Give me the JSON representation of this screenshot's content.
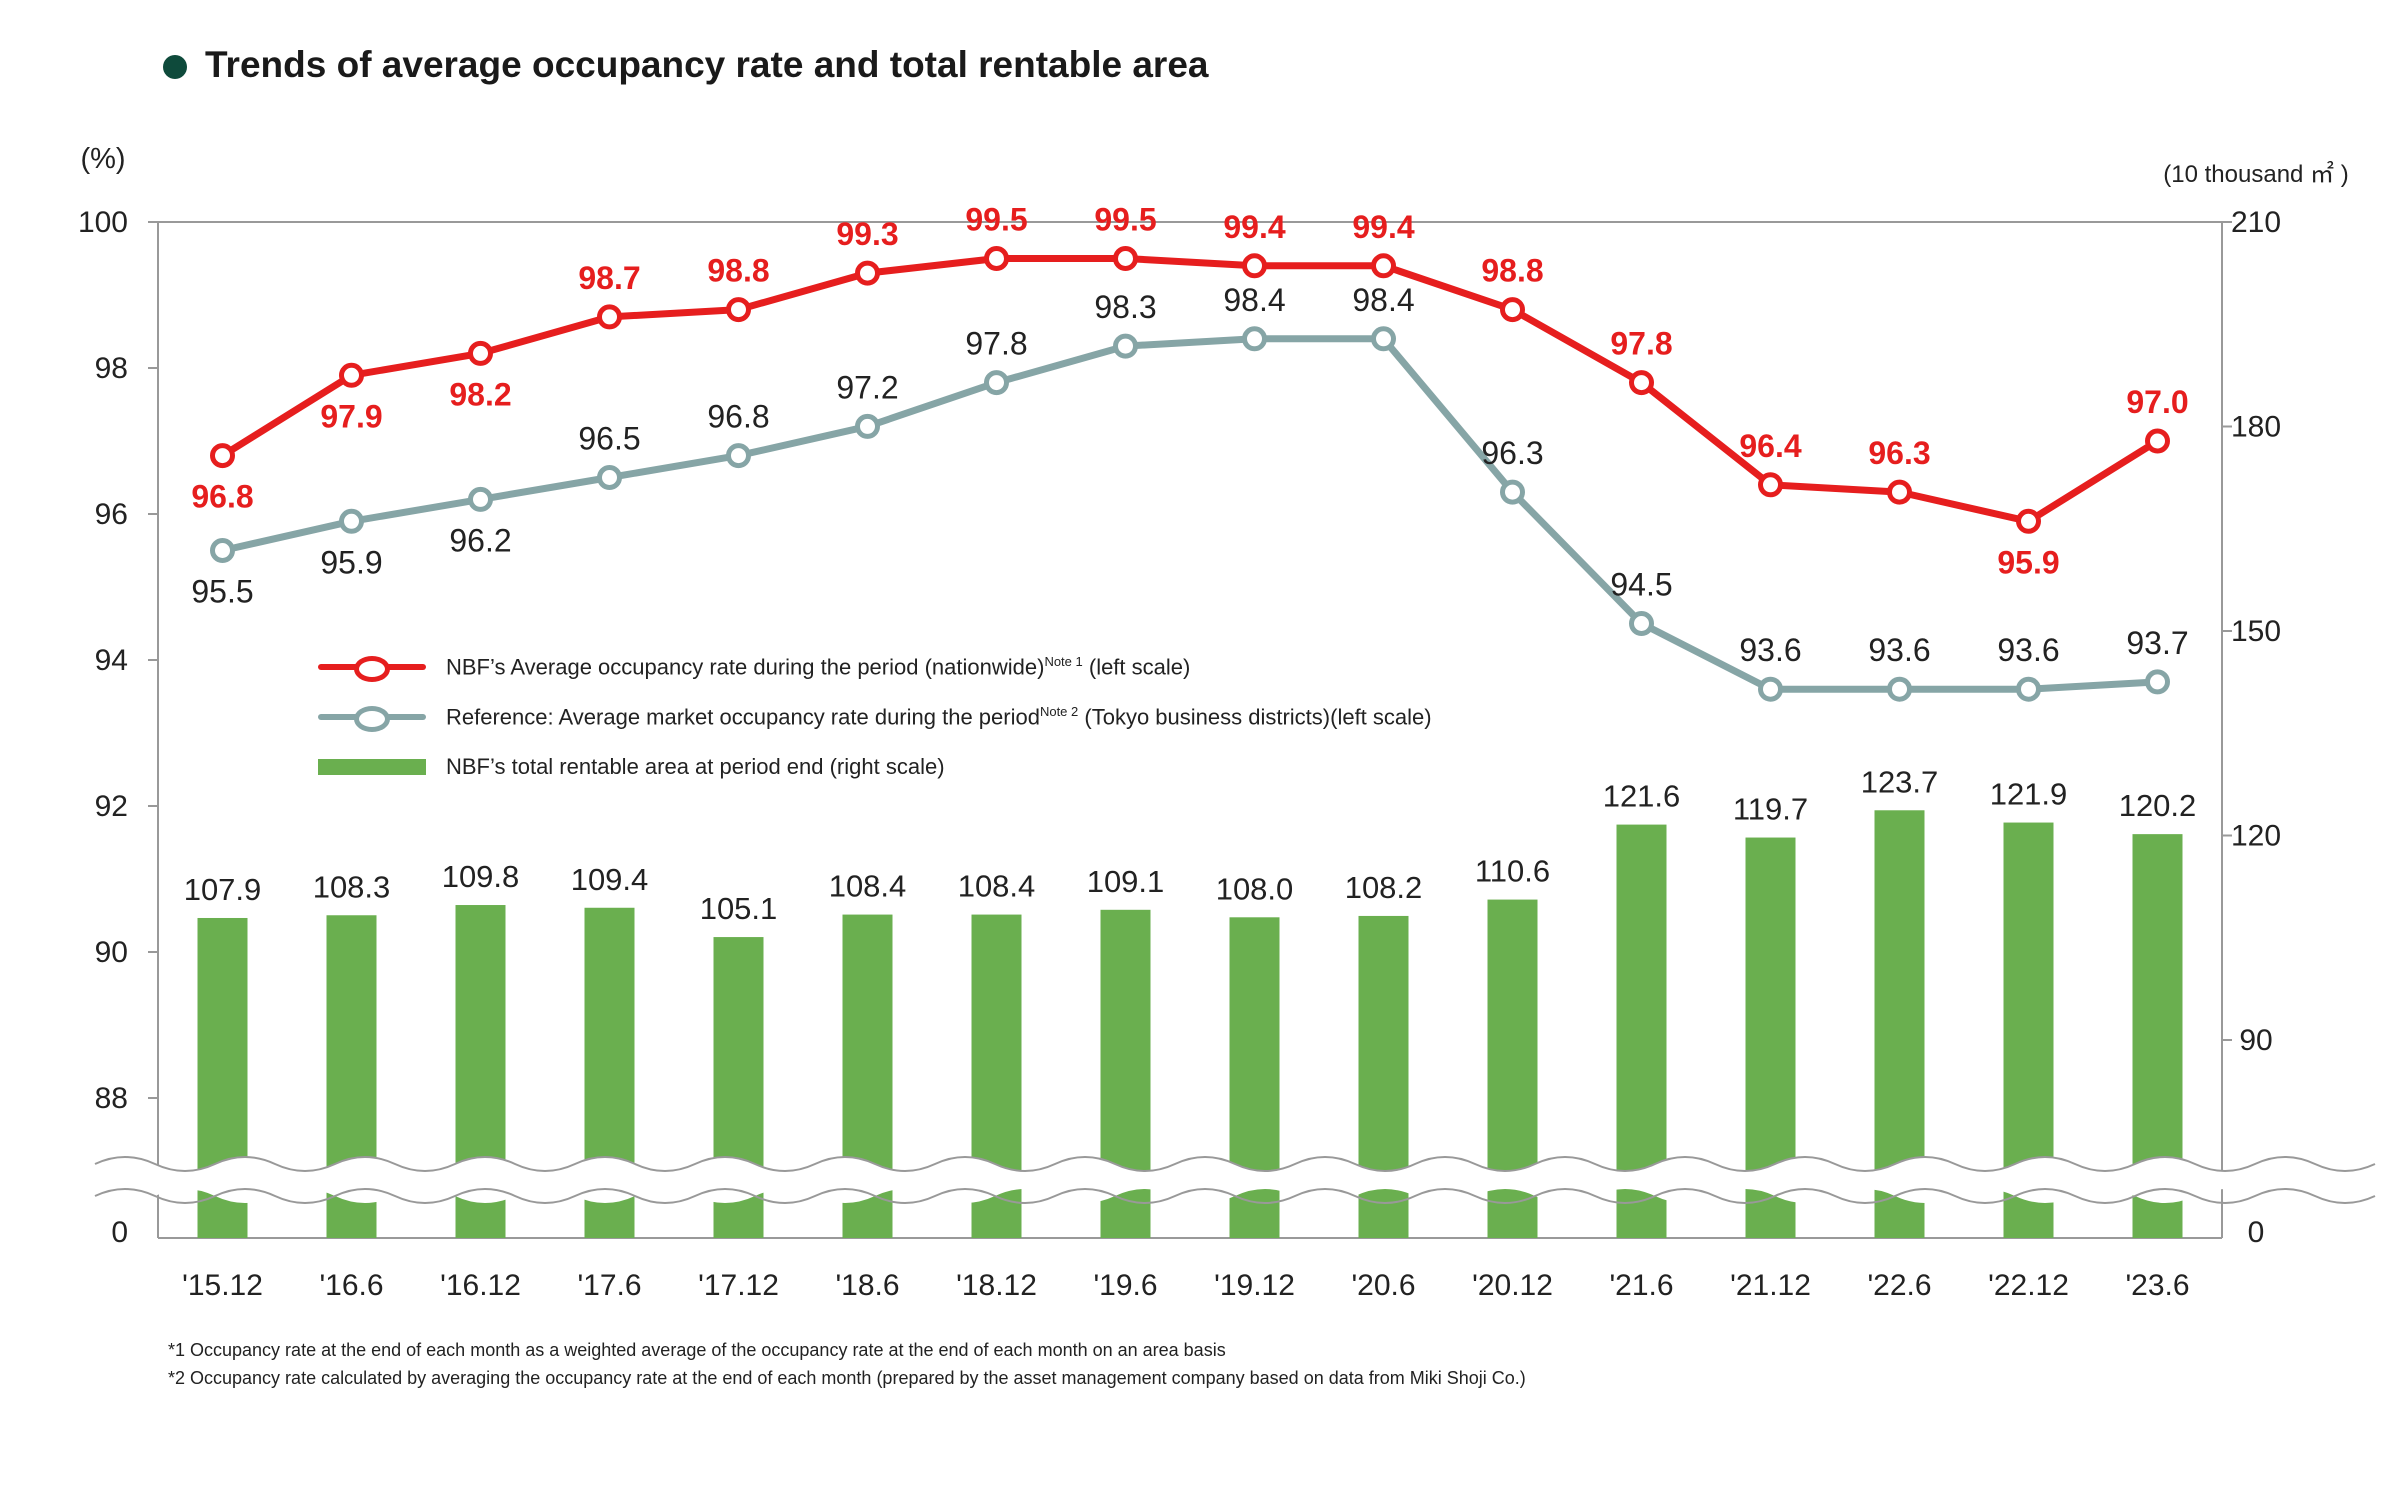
{
  "title": "Trends of average occupancy rate and total rentable area",
  "left_unit": "(%)",
  "right_unit": "(10 thousand ㎡ )",
  "legend": [
    {
      "label": "NBF’s Average occupancy rate during the period (nationwide)",
      "sup": "Note 1",
      "suffix": "  (left scale)"
    },
    {
      "label": "Reference: Average market occupancy rate during the period",
      "sup": "Note 2",
      "suffix": " (Tokyo business  districts)(left scale)"
    },
    {
      "label": "NBF’s total rentable area at period end (right scale)",
      "sup": "",
      "suffix": ""
    }
  ],
  "footnotes": [
    "*1 Occupancy rate at the end of each month as a weighted average of the occupancy rate at the end of each month on an area basis",
    "*2 Occupancy rate calculated by averaging the occupancy rate at the end of each month (prepared by the asset management company based on data from Miki Shoji Co.)"
  ],
  "colors": {
    "nbf": "#e61e1e",
    "market": "#86a5a6",
    "area": "#6aaf4f",
    "axis": "#999999"
  },
  "chart_data": {
    "type": "bar+line",
    "categories": [
      "'15.12",
      "'16.6",
      "'16.12",
      "'17.6",
      "'17.12",
      "'18.6",
      "'18.12",
      "'19.6",
      "'19.12",
      "'20.6",
      "'20.12",
      "'21.6",
      "'21.12",
      "'22.6",
      "'22.12",
      "'23.6"
    ],
    "left_axis": {
      "ticks": [
        0,
        88,
        90,
        92,
        94,
        96,
        98,
        100
      ],
      "broken_range": [
        0,
        87
      ]
    },
    "right_axis": {
      "ticks": [
        0,
        90,
        120,
        150,
        180,
        210
      ],
      "broken_range": [
        0,
        75
      ]
    },
    "series": [
      {
        "name": "NBF’s Average occupancy rate during the period (nationwide)",
        "axis": "left",
        "type": "line",
        "values": [
          96.8,
          97.9,
          98.2,
          98.7,
          98.8,
          99.3,
          99.5,
          99.5,
          99.4,
          99.4,
          98.8,
          97.8,
          96.4,
          96.3,
          95.9,
          97.0
        ]
      },
      {
        "name": "Reference: Average market occupancy rate during the period (Tokyo business districts)",
        "axis": "left",
        "type": "line",
        "values": [
          95.5,
          95.9,
          96.2,
          96.5,
          96.8,
          97.2,
          97.8,
          98.3,
          98.4,
          98.4,
          96.3,
          94.5,
          93.6,
          93.6,
          93.6,
          93.7
        ]
      },
      {
        "name": "NBF’s total rentable area at period end",
        "axis": "right",
        "type": "bar",
        "values": [
          107.9,
          108.3,
          109.8,
          109.4,
          105.1,
          108.4,
          108.4,
          109.1,
          108.0,
          108.2,
          110.6,
          121.6,
          119.7,
          123.7,
          121.9,
          120.2
        ]
      }
    ],
    "nbf_label_position": [
      "below",
      "below",
      "below",
      "above",
      "above",
      "above",
      "above",
      "above",
      "above",
      "above",
      "above",
      "above",
      "above",
      "above",
      "below",
      "above"
    ],
    "market_label_position": [
      "below",
      "below",
      "below",
      "above",
      "above",
      "above",
      "above",
      "above",
      "above",
      "above",
      "above",
      "above",
      "above",
      "above",
      "above",
      "above"
    ]
  }
}
